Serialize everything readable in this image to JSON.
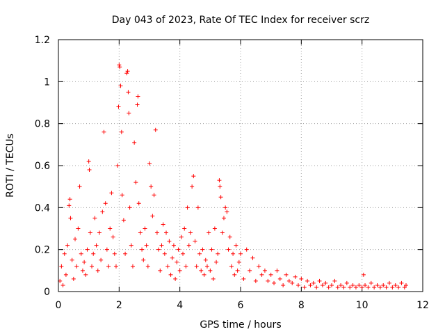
{
  "chart_data": {
    "type": "scatter",
    "title": "Day 043 of 2023, Rate Of TEC Index for receiver scrz",
    "xlabel": "GPS time / hours",
    "ylabel": "ROTI / TECUs",
    "xlim": [
      0,
      12
    ],
    "ylim": [
      0,
      1.2
    ],
    "xticks": [
      0,
      2,
      4,
      6,
      8,
      10,
      12
    ],
    "xtick_labels": [
      "0",
      "2",
      "4",
      "6",
      "8",
      "10",
      "12"
    ],
    "yticks": [
      0,
      0.2,
      0.4,
      0.6,
      0.8,
      1,
      1.2
    ],
    "ytick_labels": [
      "0",
      "0.2",
      "0.4",
      "0.6",
      "0.8",
      "1",
      "1.2"
    ],
    "grid": true,
    "marker": "+",
    "color": "#ff0000",
    "series": [
      {
        "name": "ROTI",
        "points": [
          [
            0.05,
            0.05
          ],
          [
            0.1,
            0.12
          ],
          [
            0.15,
            0.03
          ],
          [
            0.2,
            0.18
          ],
          [
            0.25,
            0.08
          ],
          [
            0.3,
            0.22
          ],
          [
            0.35,
            0.41
          ],
          [
            0.38,
            0.44
          ],
          [
            0.4,
            0.35
          ],
          [
            0.45,
            0.15
          ],
          [
            0.5,
            0.06
          ],
          [
            0.55,
            0.25
          ],
          [
            0.6,
            0.12
          ],
          [
            0.65,
            0.3
          ],
          [
            0.7,
            0.5
          ],
          [
            0.75,
            0.18
          ],
          [
            0.8,
            0.1
          ],
          [
            0.85,
            0.14
          ],
          [
            0.9,
            0.08
          ],
          [
            0.95,
            0.2
          ],
          [
            1.0,
            0.62
          ],
          [
            1.02,
            0.58
          ],
          [
            1.05,
            0.28
          ],
          [
            1.1,
            0.12
          ],
          [
            1.15,
            0.18
          ],
          [
            1.2,
            0.35
          ],
          [
            1.25,
            0.22
          ],
          [
            1.3,
            0.1
          ],
          [
            1.35,
            0.28
          ],
          [
            1.4,
            0.15
          ],
          [
            1.45,
            0.38
          ],
          [
            1.5,
            0.76
          ],
          [
            1.55,
            0.42
          ],
          [
            1.6,
            0.2
          ],
          [
            1.65,
            0.12
          ],
          [
            1.7,
            0.3
          ],
          [
            1.75,
            0.47
          ],
          [
            1.8,
            0.26
          ],
          [
            1.85,
            0.18
          ],
          [
            1.9,
            0.12
          ],
          [
            1.95,
            0.6
          ],
          [
            1.98,
            0.88
          ],
          [
            2.0,
            1.08
          ],
          [
            2.02,
            1.07
          ],
          [
            2.05,
            0.98
          ],
          [
            2.08,
            0.76
          ],
          [
            2.1,
            0.46
          ],
          [
            2.15,
            0.34
          ],
          [
            2.2,
            0.18
          ],
          [
            2.25,
            1.04
          ],
          [
            2.28,
            1.05
          ],
          [
            2.3,
            0.95
          ],
          [
            2.32,
            0.85
          ],
          [
            2.35,
            0.4
          ],
          [
            2.4,
            0.22
          ],
          [
            2.45,
            0.12
          ],
          [
            2.5,
            0.71
          ],
          [
            2.55,
            0.52
          ],
          [
            2.6,
            0.89
          ],
          [
            2.62,
            0.93
          ],
          [
            2.65,
            0.42
          ],
          [
            2.7,
            0.28
          ],
          [
            2.75,
            0.2
          ],
          [
            2.8,
            0.15
          ],
          [
            2.85,
            0.3
          ],
          [
            2.9,
            0.22
          ],
          [
            2.95,
            0.12
          ],
          [
            3.0,
            0.61
          ],
          [
            3.05,
            0.5
          ],
          [
            3.1,
            0.36
          ],
          [
            3.15,
            0.46
          ],
          [
            3.2,
            0.77
          ],
          [
            3.25,
            0.28
          ],
          [
            3.3,
            0.2
          ],
          [
            3.35,
            0.1
          ],
          [
            3.4,
            0.22
          ],
          [
            3.45,
            0.32
          ],
          [
            3.5,
            0.18
          ],
          [
            3.55,
            0.28
          ],
          [
            3.6,
            0.12
          ],
          [
            3.65,
            0.24
          ],
          [
            3.7,
            0.08
          ],
          [
            3.75,
            0.16
          ],
          [
            3.8,
            0.22
          ],
          [
            3.85,
            0.06
          ],
          [
            3.9,
            0.14
          ],
          [
            3.95,
            0.2
          ],
          [
            4.0,
            0.1
          ],
          [
            4.05,
            0.26
          ],
          [
            4.1,
            0.18
          ],
          [
            4.15,
            0.3
          ],
          [
            4.2,
            0.12
          ],
          [
            4.25,
            0.4
          ],
          [
            4.3,
            0.22
          ],
          [
            4.35,
            0.28
          ],
          [
            4.4,
            0.5
          ],
          [
            4.45,
            0.55
          ],
          [
            4.5,
            0.24
          ],
          [
            4.55,
            0.12
          ],
          [
            4.6,
            0.4
          ],
          [
            4.65,
            0.18
          ],
          [
            4.7,
            0.1
          ],
          [
            4.75,
            0.2
          ],
          [
            4.8,
            0.08
          ],
          [
            4.85,
            0.15
          ],
          [
            4.9,
            0.12
          ],
          [
            4.95,
            0.28
          ],
          [
            5.0,
            0.1
          ],
          [
            5.05,
            0.2
          ],
          [
            5.1,
            0.06
          ],
          [
            5.15,
            0.3
          ],
          [
            5.2,
            0.14
          ],
          [
            5.25,
            0.18
          ],
          [
            5.3,
            0.53
          ],
          [
            5.32,
            0.5
          ],
          [
            5.35,
            0.45
          ],
          [
            5.4,
            0.28
          ],
          [
            5.45,
            0.35
          ],
          [
            5.5,
            0.4
          ],
          [
            5.55,
            0.38
          ],
          [
            5.6,
            0.2
          ],
          [
            5.65,
            0.26
          ],
          [
            5.7,
            0.12
          ],
          [
            5.75,
            0.18
          ],
          [
            5.8,
            0.08
          ],
          [
            5.85,
            0.22
          ],
          [
            5.9,
            0.1
          ],
          [
            5.95,
            0.14
          ],
          [
            6.0,
            0.18
          ],
          [
            6.1,
            0.06
          ],
          [
            6.2,
            0.2
          ],
          [
            6.3,
            0.1
          ],
          [
            6.4,
            0.16
          ],
          [
            6.5,
            0.05
          ],
          [
            6.6,
            0.12
          ],
          [
            6.7,
            0.08
          ],
          [
            6.8,
            0.1
          ],
          [
            6.9,
            0.05
          ],
          [
            7.0,
            0.08
          ],
          [
            7.1,
            0.04
          ],
          [
            7.2,
            0.1
          ],
          [
            7.3,
            0.06
          ],
          [
            7.4,
            0.03
          ],
          [
            7.5,
            0.08
          ],
          [
            7.6,
            0.05
          ],
          [
            7.7,
            0.04
          ],
          [
            7.8,
            0.07
          ],
          [
            7.9,
            0.03
          ],
          [
            8.0,
            0.06
          ],
          [
            8.1,
            0.02
          ],
          [
            8.2,
            0.05
          ],
          [
            8.3,
            0.03
          ],
          [
            8.4,
            0.04
          ],
          [
            8.5,
            0.02
          ],
          [
            8.6,
            0.05
          ],
          [
            8.7,
            0.03
          ],
          [
            8.8,
            0.04
          ],
          [
            8.9,
            0.02
          ],
          [
            9.0,
            0.03
          ],
          [
            9.1,
            0.05
          ],
          [
            9.2,
            0.02
          ],
          [
            9.3,
            0.03
          ],
          [
            9.4,
            0.02
          ],
          [
            9.5,
            0.04
          ],
          [
            9.6,
            0.02
          ],
          [
            9.7,
            0.03
          ],
          [
            9.8,
            0.02
          ],
          [
            9.9,
            0.03
          ],
          [
            10.0,
            0.02
          ],
          [
            10.05,
            0.08
          ],
          [
            10.1,
            0.03
          ],
          [
            10.2,
            0.02
          ],
          [
            10.3,
            0.04
          ],
          [
            10.4,
            0.02
          ],
          [
            10.5,
            0.03
          ],
          [
            10.6,
            0.02
          ],
          [
            10.7,
            0.03
          ],
          [
            10.8,
            0.02
          ],
          [
            10.9,
            0.04
          ],
          [
            11.0,
            0.02
          ],
          [
            11.1,
            0.03
          ],
          [
            11.2,
            0.02
          ],
          [
            11.3,
            0.04
          ],
          [
            11.4,
            0.02
          ],
          [
            11.45,
            0.03
          ]
        ]
      }
    ]
  }
}
